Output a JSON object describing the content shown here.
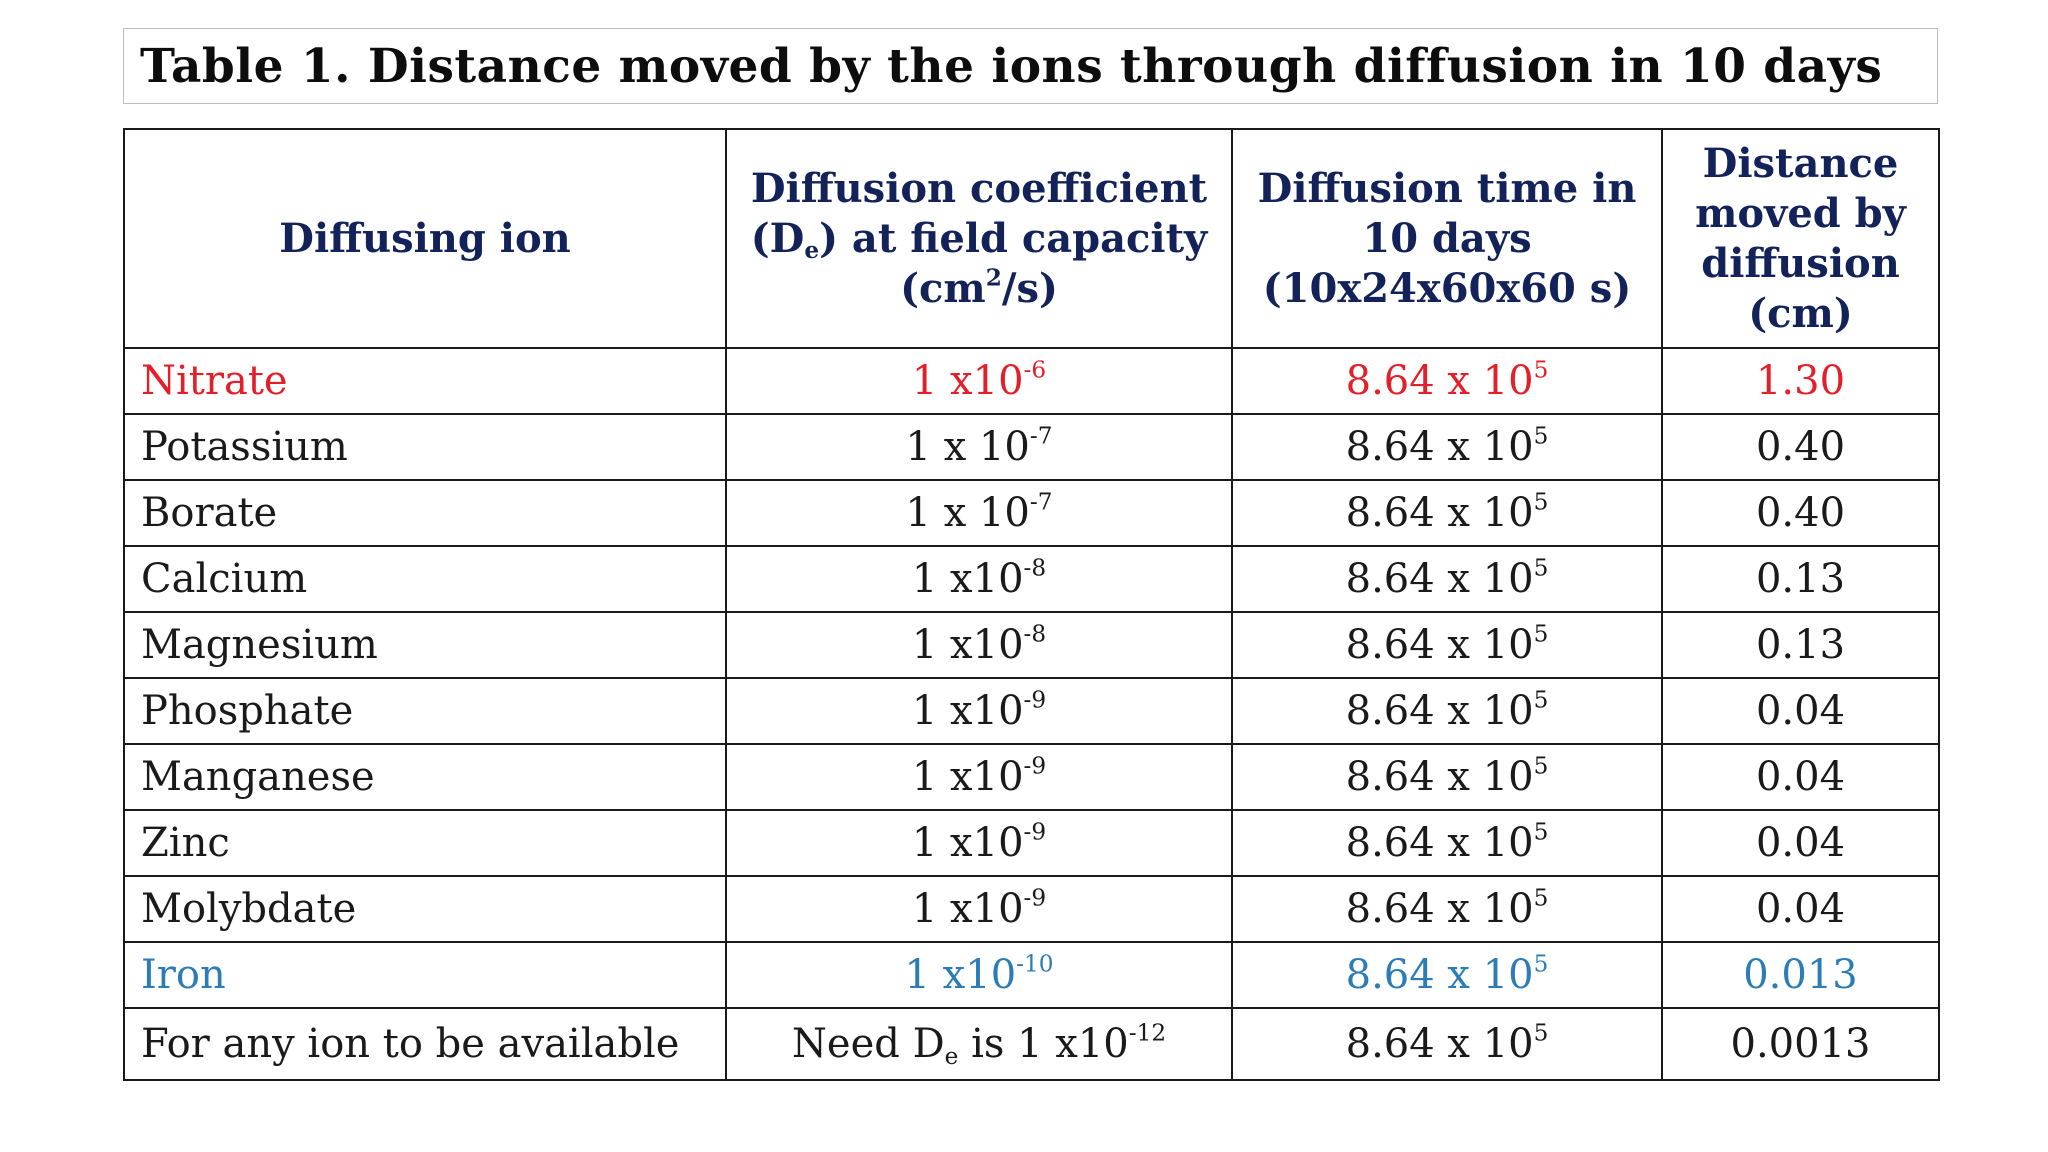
{
  "title": "Table 1. Distance moved by the ions through diffusion in 10 days",
  "headers": {
    "ion": "Diffusing ion",
    "coef_pre": "Diffusion coefficient (D",
    "coef_sub": "e",
    "coef_mid": ") at field capacity (cm",
    "coef_sup": "2",
    "coef_post": "/s)",
    "time": "Diffusion time in 10 days (10x24x60x60 s)",
    "distance": "Distance moved by diffusion (cm)"
  },
  "rows": [
    {
      "ion": "Nitrate",
      "coef_base": "1 x10",
      "coef_exp": "-6",
      "time_base": "8.64 x 10",
      "time_exp": "5",
      "distance": "1.30",
      "style": "red"
    },
    {
      "ion": "Potassium",
      "coef_base": "1 x 10",
      "coef_exp": "-7",
      "time_base": "8.64 x 10",
      "time_exp": "5",
      "distance": "0.40",
      "style": "normal"
    },
    {
      "ion": "Borate",
      "coef_base": "1 x 10",
      "coef_exp": "-7",
      "time_base": "8.64 x 10",
      "time_exp": "5",
      "distance": "0.40",
      "style": "normal"
    },
    {
      "ion": "Calcium",
      "coef_base": "1 x10",
      "coef_exp": "-8",
      "time_base": "8.64 x 10",
      "time_exp": "5",
      "distance": "0.13",
      "style": "normal"
    },
    {
      "ion": "Magnesium",
      "coef_base": "1 x10",
      "coef_exp": "-8",
      "time_base": "8.64 x 10",
      "time_exp": "5",
      "distance": "0.13",
      "style": "normal"
    },
    {
      "ion": "Phosphate",
      "coef_base": "1 x10",
      "coef_exp": "-9",
      "time_base": "8.64 x 10",
      "time_exp": "5",
      "distance": "0.04",
      "style": "normal"
    },
    {
      "ion": "Manganese",
      "coef_base": "1 x10",
      "coef_exp": "-9",
      "time_base": "8.64 x 10",
      "time_exp": "5",
      "distance": "0.04",
      "style": "normal"
    },
    {
      "ion": "Zinc",
      "coef_base": "1 x10",
      "coef_exp": "-9",
      "time_base": "8.64 x 10",
      "time_exp": "5",
      "distance": "0.04",
      "style": "normal"
    },
    {
      "ion": "Molybdate",
      "coef_base": "1 x10",
      "coef_exp": "-9",
      "time_base": "8.64 x 10",
      "time_exp": "5",
      "distance": "0.04",
      "style": "normal"
    },
    {
      "ion": "Iron",
      "coef_base": "1 x10",
      "coef_exp": "-10",
      "time_base": "8.64 x 10",
      "time_exp": "5",
      "distance": "0.013",
      "style": "blue"
    }
  ],
  "last_row": {
    "ion": "For any ion to be available",
    "coef_pre": "Need D",
    "coef_sub": "e",
    "coef_mid": " is 1 x10",
    "coef_exp": "-12",
    "time_base": "8.64 x 10",
    "time_exp": "5",
    "distance": "0.0013"
  },
  "colors": {
    "header_text": "#13235a",
    "highlight_red": "#e3202a",
    "highlight_blue": "#2c7cb8",
    "body_text": "#1a1a1a"
  }
}
